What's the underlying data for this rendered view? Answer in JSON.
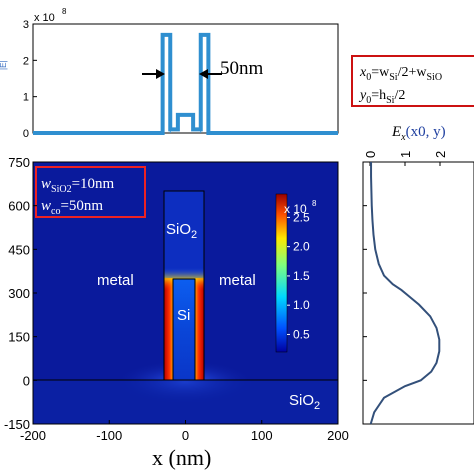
{
  "chart_data": [
    {
      "type": "line",
      "panel": "top",
      "y_multiplier": "x 10",
      "y_multiplier_exp": "8",
      "ylabel": "|E|",
      "xlim": [
        -200,
        200
      ],
      "ylim": [
        0,
        3
      ],
      "yticks": [
        0,
        1,
        2,
        3
      ],
      "grid": false,
      "annotation": "50nm",
      "series": [
        {
          "x": [
            -200,
            -30,
            -30,
            -20,
            -20,
            -10,
            -10,
            10,
            10,
            20,
            20,
            30,
            30,
            200
          ],
          "y": [
            0,
            0,
            2.7,
            2.7,
            0.1,
            0.1,
            0.5,
            0.5,
            0.1,
            0.1,
            2.7,
            2.7,
            0,
            0
          ]
        }
      ]
    },
    {
      "type": "heatmap",
      "panel": "main",
      "xlabel": "x (nm)",
      "ylabel": "",
      "xlim": [
        -200,
        200
      ],
      "ylim": [
        -150,
        750
      ],
      "xticks": [
        -200,
        -100,
        0,
        100,
        200
      ],
      "yticks": [
        -150,
        0,
        150,
        300,
        450,
        600,
        750
      ],
      "colorbar": {
        "multiplier": "x 10",
        "multiplier_exp": "8",
        "ticks": [
          "2.5",
          "2.0",
          "1.5",
          "1.0",
          "0.5"
        ],
        "range": [
          0.2,
          2.9
        ]
      },
      "regions": {
        "metal_left": "metal",
        "metal_right": "metal",
        "sio2_top": "SiO",
        "sio2_top_sub": "2",
        "si": "Si",
        "sio2_bottom": "SiO",
        "sio2_bottom_sub": "2"
      },
      "legend_box": {
        "line1_var": "w",
        "line1_sub": "SiO2",
        "line1_val": "=10nm",
        "line2_var": "w",
        "line2_sub": "co",
        "line2_val": "=50nm"
      }
    },
    {
      "type": "line",
      "panel": "side",
      "ylim": [
        -150,
        750
      ],
      "xlim": [
        0,
        2
      ],
      "xticks": [
        "0",
        "1",
        "2"
      ],
      "title_var": "E",
      "title_sub": "x",
      "title_args": "(x0, y)",
      "series": [
        {
          "y": [
            -150,
            -110,
            -60,
            -20,
            0,
            30,
            60,
            100,
            140,
            180,
            220,
            260,
            290,
            310,
            330,
            360,
            400,
            450,
            500,
            550,
            600,
            650,
            700,
            750
          ],
          "x": [
            0.02,
            0.12,
            0.4,
            1.0,
            1.45,
            1.75,
            1.9,
            1.98,
            1.98,
            1.9,
            1.72,
            1.4,
            1.1,
            0.9,
            0.65,
            0.4,
            0.25,
            0.15,
            0.1,
            0.07,
            0.05,
            0.04,
            0.03,
            0.03
          ]
        }
      ]
    }
  ],
  "info_box": {
    "line1": "x0=wSi/2+wSiO2",
    "line1_x": "x",
    "line1_x_sub": "0",
    "line1_eq": "=w",
    "line1_w_sub": "Si",
    "line1_rest": "/2+w",
    "line1_rest_sub": "SiO",
    "line2_y": "y",
    "line2_y_sub": "0",
    "line2_eq": "=h",
    "line2_h_sub": "Si",
    "line2_rest": "/2"
  },
  "colors": {
    "line": "#2f8fd0",
    "box_border": "#cc1111",
    "side_curve": "#33507a",
    "background_field": "#0a1a9c"
  }
}
